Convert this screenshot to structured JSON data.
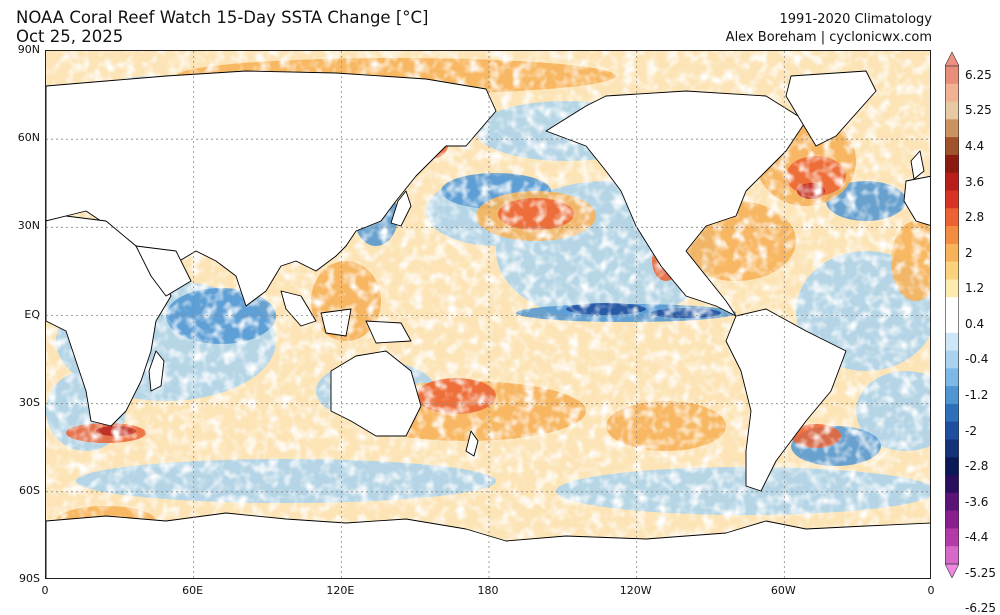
{
  "header": {
    "title": "NOAA Coral Reef Watch 15-Day SSTA Change [°C]",
    "date": "Oct 25, 2025",
    "climatology": "1991-2020 Climatology",
    "credit": "Alex Boreham | cyclonicwx.com"
  },
  "map": {
    "projection": "equirectangular",
    "central_longitude": 180,
    "lat_ticks": [
      "90N",
      "60N",
      "30N",
      "EQ",
      "30S",
      "60S",
      "90S"
    ],
    "lon_ticks": [
      "0",
      "60E",
      "120E",
      "180",
      "120W",
      "60W",
      "0"
    ],
    "land_color": "#ffffff",
    "coastline_color": "#000000"
  },
  "colorbar": {
    "labels": [
      "6.25",
      "5.25",
      "4.4",
      "3.6",
      "2.8",
      "2",
      "1.2",
      "0.4",
      "-0.4",
      "-1.2",
      "-2",
      "-2.8",
      "-3.6",
      "-4.4",
      "-5.25",
      "-6.25"
    ],
    "colors": [
      "#e88e7a",
      "#f0b292",
      "#e7c9a3",
      "#c9925f",
      "#a0522d",
      "#8b1a10",
      "#b81f1a",
      "#d73426",
      "#ec6232",
      "#f28c40",
      "#f7b25a",
      "#fbd37e",
      "#fdebb0",
      "#ffffff",
      "#ffffff",
      "#cfe6f6",
      "#a9d3ef",
      "#7db8e6",
      "#4f95d2",
      "#2e6fba",
      "#1f4e9e",
      "#16337a",
      "#0b1a57",
      "#2a0f5c",
      "#5a1478",
      "#8a1e8e",
      "#b33aa8",
      "#d76ac8"
    ],
    "arrow_top_color": "#f09080",
    "arrow_bottom_color": "#ee88e0"
  }
}
